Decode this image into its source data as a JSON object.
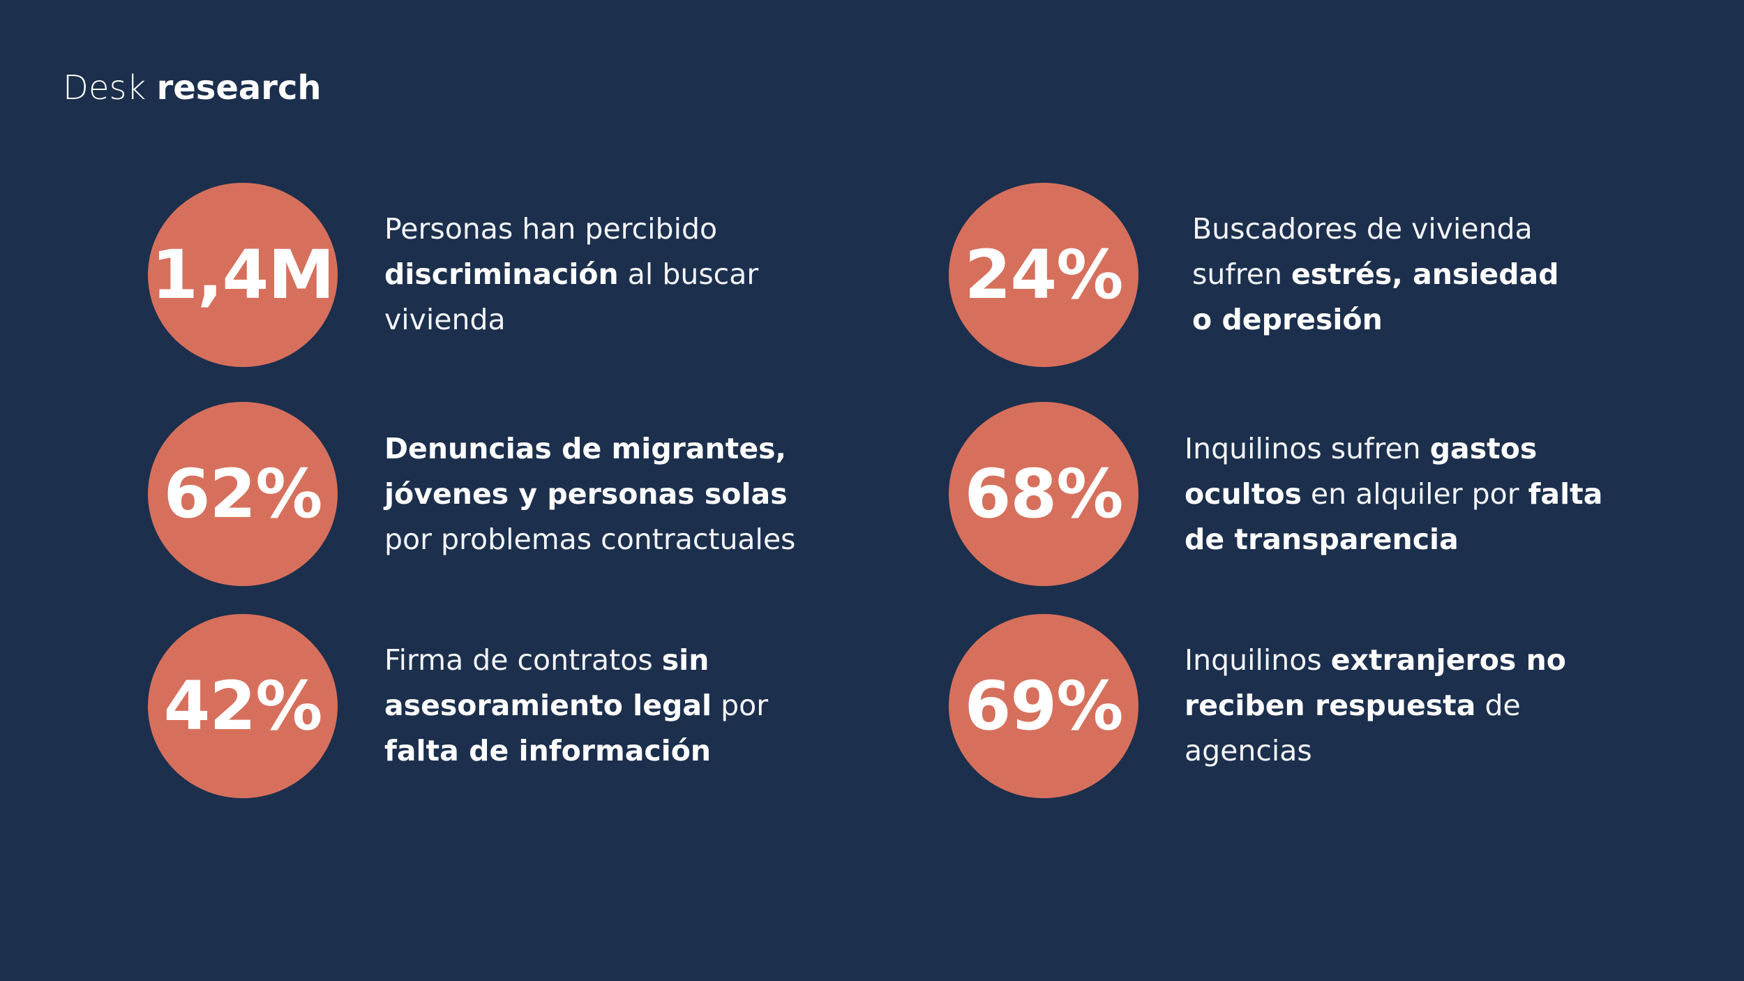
{
  "header": {
    "title_light": "Desk",
    "title_bold": "research"
  },
  "colors": {
    "background": "#1c2f4d",
    "circle": "#d6705c",
    "text": "#ffffff"
  },
  "stats": [
    {
      "value": "1,4M",
      "desc": [
        "Personas han percibido ",
        "discriminación",
        " al buscar vivienda"
      ]
    },
    {
      "value": "24%",
      "desc": [
        "Buscadores de vivienda sufren ",
        "estrés, ansiedad o depresión"
      ]
    },
    {
      "value": "62%",
      "desc": [
        "Denuncias de migrantes, jóvenes y personas solas",
        " por problemas contractuales"
      ]
    },
    {
      "value": "68%",
      "desc": [
        "Inquilinos sufren ",
        "gastos ocultos",
        " en alquiler por ",
        "falta de transparencia"
      ]
    },
    {
      "value": "42%",
      "desc": [
        "Firma de contratos ",
        "sin asesoramiento legal",
        " por ",
        "falta de información"
      ]
    },
    {
      "value": "69%",
      "desc": [
        "Inquilinos ",
        "extranjeros no reciben respuesta",
        " de agencias"
      ]
    }
  ]
}
